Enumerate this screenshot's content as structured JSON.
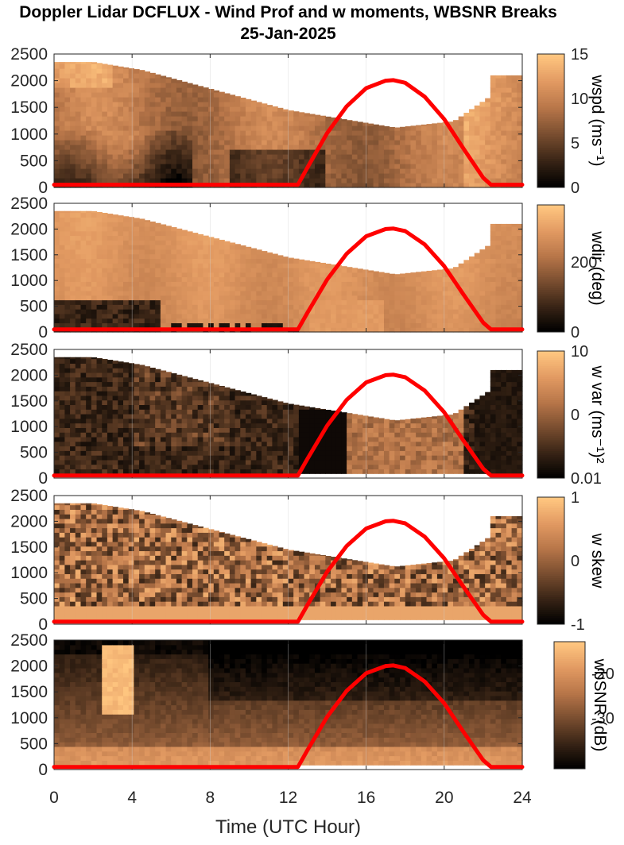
{
  "figure": {
    "title_line1": "Doppler Lidar DCFLUX - Wind Prof and w moments, WBSNR Breaks",
    "title_line2": "25-Jan-2025",
    "xlabel": "Time (UTC Hour)"
  },
  "chart_data": [
    {
      "type": "heatmap",
      "panel": "wspd",
      "colorbar_label": "wspd (ms⁻¹)",
      "colorbar_ticks": [
        "15",
        "10",
        "5",
        "0"
      ],
      "colorbar_range": [
        0,
        15
      ],
      "ylim": [
        0,
        2500
      ],
      "yticks": [
        0,
        500,
        1000,
        1500,
        2000,
        2500
      ],
      "xlim": [
        0,
        24
      ]
    },
    {
      "type": "heatmap",
      "panel": "wdir",
      "colorbar_label": "wdir (deg)",
      "colorbar_ticks": [
        "200",
        "0"
      ],
      "colorbar_range": [
        0,
        360
      ],
      "ylim": [
        0,
        2500
      ],
      "yticks": [
        0,
        500,
        1000,
        1500,
        2000,
        2500
      ],
      "xlim": [
        0,
        24
      ]
    },
    {
      "type": "heatmap",
      "panel": "w var",
      "colorbar_label": "w var (ms⁻¹)²",
      "colorbar_ticks": [
        "10",
        "0",
        "0.01"
      ],
      "colorbar_scale": "log",
      "ylim": [
        0,
        2500
      ],
      "yticks": [
        0,
        500,
        1000,
        1500,
        2000,
        2500
      ],
      "xlim": [
        0,
        24
      ]
    },
    {
      "type": "heatmap",
      "panel": "w skew",
      "colorbar_label": "w skew",
      "colorbar_ticks": [
        "1",
        "0",
        "-1"
      ],
      "colorbar_range": [
        -1,
        1
      ],
      "ylim": [
        0,
        2500
      ],
      "yticks": [
        0,
        500,
        1000,
        1500,
        2000,
        2500
      ],
      "xlim": [
        0,
        24
      ]
    },
    {
      "type": "heatmap",
      "panel": "wbSNR",
      "colorbar_label": "wbSNR (dB)",
      "colorbar_ticks": [
        "-20",
        "-30"
      ],
      "ylim": [
        0,
        2500
      ],
      "yticks": [
        0,
        500,
        1000,
        1500,
        2000,
        2500
      ],
      "xlim": [
        0,
        24
      ],
      "xticks": [
        0,
        4,
        8,
        12,
        16,
        20,
        24
      ]
    }
  ],
  "overlay_line": {
    "type": "line",
    "color": "#ff0000",
    "x": [
      0,
      12.2,
      12.5,
      13,
      14,
      15,
      16,
      17,
      17.4,
      18,
      19,
      20,
      21,
      22,
      22.4,
      24
    ],
    "y": [
      50,
      50,
      50,
      380,
      1020,
      1520,
      1860,
      2000,
      2010,
      1960,
      1700,
      1280,
      720,
      180,
      50,
      50
    ]
  },
  "colors": {
    "colormap": [
      "#000000",
      "#3a2516",
      "#7a4e30",
      "#b87649",
      "#e29a62",
      "#ffc680"
    ],
    "overlay": "#ff0000"
  }
}
